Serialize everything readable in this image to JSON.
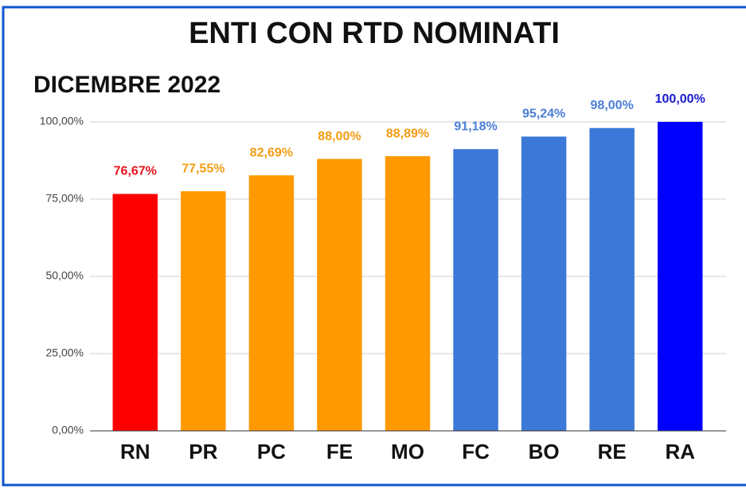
{
  "chart_data": {
    "type": "bar",
    "title": "ENTI CON RTD NOMINATI",
    "subtitle": "DICEMBRE 2022",
    "categories": [
      "RN",
      "PR",
      "PC",
      "FE",
      "MO",
      "FC",
      "BO",
      "RE",
      "RA"
    ],
    "values": [
      76.67,
      77.55,
      82.69,
      88.0,
      88.89,
      91.18,
      95.24,
      98.0,
      100.0
    ],
    "value_labels": [
      "76,67%",
      "77,55%",
      "82,69%",
      "88,00%",
      "88,89%",
      "91,18%",
      "95,24%",
      "98,00%",
      "100,00%"
    ],
    "colors": [
      "#ff0000",
      "#ff9900",
      "#ff9900",
      "#ff9900",
      "#ff9900",
      "#3c78d8",
      "#3c78d8",
      "#3c78d8",
      "#0000ff"
    ],
    "label_colors": [
      "#e8141c",
      "#f39c12",
      "#f39c12",
      "#f39c12",
      "#f39c12",
      "#4a7fd6",
      "#4a7fd6",
      "#4a7fd6",
      "#1a1ad0"
    ],
    "ylim": [
      0,
      100
    ],
    "yticks": [
      {
        "value": 0,
        "label": "0,00%"
      },
      {
        "value": 25,
        "label": "25,00%"
      },
      {
        "value": 50,
        "label": "50,00%"
      },
      {
        "value": 75,
        "label": "75,00%"
      },
      {
        "value": 100,
        "label": "100,00%"
      }
    ],
    "grid": true
  }
}
